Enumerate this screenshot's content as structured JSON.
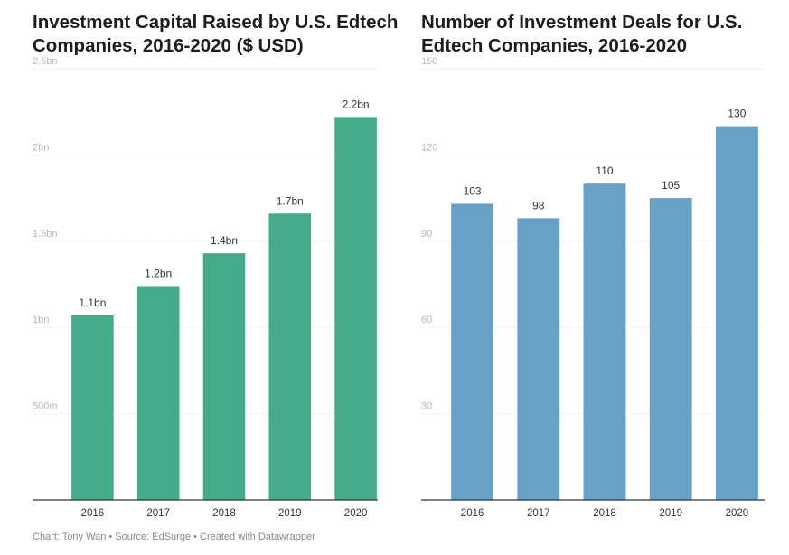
{
  "chart_data": [
    {
      "type": "bar",
      "title": "Investment Capital Raised by U.S. Edtech Companies, 2016-2020 ($ USD)",
      "categories": [
        "2016",
        "2017",
        "2018",
        "2019",
        "2020"
      ],
      "values": [
        1.07,
        1.24,
        1.43,
        1.66,
        2.22
      ],
      "data_labels": [
        "1.1bn",
        "1.2bn",
        "1.4bn",
        "1.7bn",
        "2.2bn"
      ],
      "ylim": [
        0,
        2.5
      ],
      "yticks": [
        {
          "value": 0.5,
          "label": "500m"
        },
        {
          "value": 1.0,
          "label": "1bn"
        },
        {
          "value": 1.5,
          "label": "1.5bn"
        },
        {
          "value": 2.0,
          "label": "2bn"
        },
        {
          "value": 2.5,
          "label": "2.5bn"
        }
      ],
      "color": "#45ab8a",
      "grid": true
    },
    {
      "type": "bar",
      "title": "Number of Investment Deals for U.S. Edtech Companies, 2016-2020",
      "categories": [
        "2016",
        "2017",
        "2018",
        "2019",
        "2020"
      ],
      "values": [
        103,
        98,
        110,
        105,
        130
      ],
      "data_labels": [
        "103",
        "98",
        "110",
        "105",
        "130"
      ],
      "ylim": [
        0,
        150
      ],
      "yticks": [
        {
          "value": 30,
          "label": "30"
        },
        {
          "value": 60,
          "label": "60"
        },
        {
          "value": 90,
          "label": "90"
        },
        {
          "value": 120,
          "label": "120"
        },
        {
          "value": 150,
          "label": "150"
        }
      ],
      "color": "#68a1c6",
      "grid": true
    }
  ],
  "footer": "Chart: Tony Wan • Source: EdSurge • Created with Datawrapper"
}
